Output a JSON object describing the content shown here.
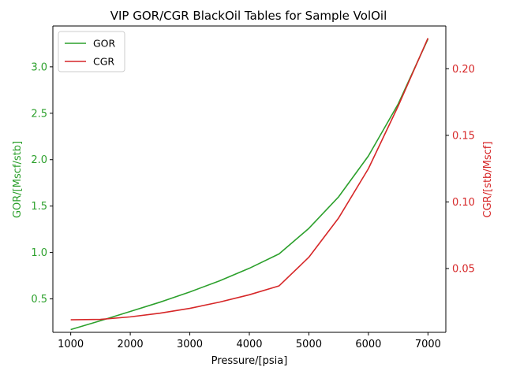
{
  "chart_data": {
    "type": "line",
    "title": "VIP  GOR/CGR BlackOil Tables for Sample VolOil",
    "xlabel": "Pressure/[psia]",
    "ylabel_left": "GOR/[Mscf/stb]",
    "ylabel_right": "CGR/[stb/Mscf]",
    "xlim": [
      700,
      7300
    ],
    "ylim_left": [
      0.14,
      3.44
    ],
    "ylim_right": [
      0.0021,
      0.2321
    ],
    "x_ticks": [
      1000,
      2000,
      3000,
      4000,
      5000,
      6000,
      7000
    ],
    "y_ticks_left": [
      0.5,
      1.0,
      1.5,
      2.0,
      2.5,
      3.0
    ],
    "y_ticks_left_labels": [
      "0.5",
      "1.0",
      "1.5",
      "2.0",
      "2.5",
      "3.0"
    ],
    "y_ticks_right": [
      0.05,
      0.1,
      0.15,
      0.2
    ],
    "y_ticks_right_labels": [
      "0.05",
      "0.10",
      "0.15",
      "0.20"
    ],
    "grid": false,
    "legend_position": "top-left",
    "x": [
      1000,
      1500,
      2000,
      2500,
      3000,
      3500,
      4000,
      4500,
      5000,
      5500,
      6000,
      6500,
      7000
    ],
    "series": [
      {
        "name": "GOR",
        "axis": "left",
        "color": "#2ca02c",
        "values": [
          0.17,
          0.265,
          0.365,
          0.465,
          0.575,
          0.695,
          0.83,
          0.985,
          1.26,
          1.6,
          2.04,
          2.6,
          3.3
        ]
      },
      {
        "name": "CGR",
        "axis": "right",
        "color": "#d62728",
        "values": [
          0.0115,
          0.0118,
          0.0137,
          0.0165,
          0.0201,
          0.0248,
          0.0303,
          0.037,
          0.0585,
          0.088,
          0.125,
          0.172,
          0.223
        ]
      }
    ]
  }
}
